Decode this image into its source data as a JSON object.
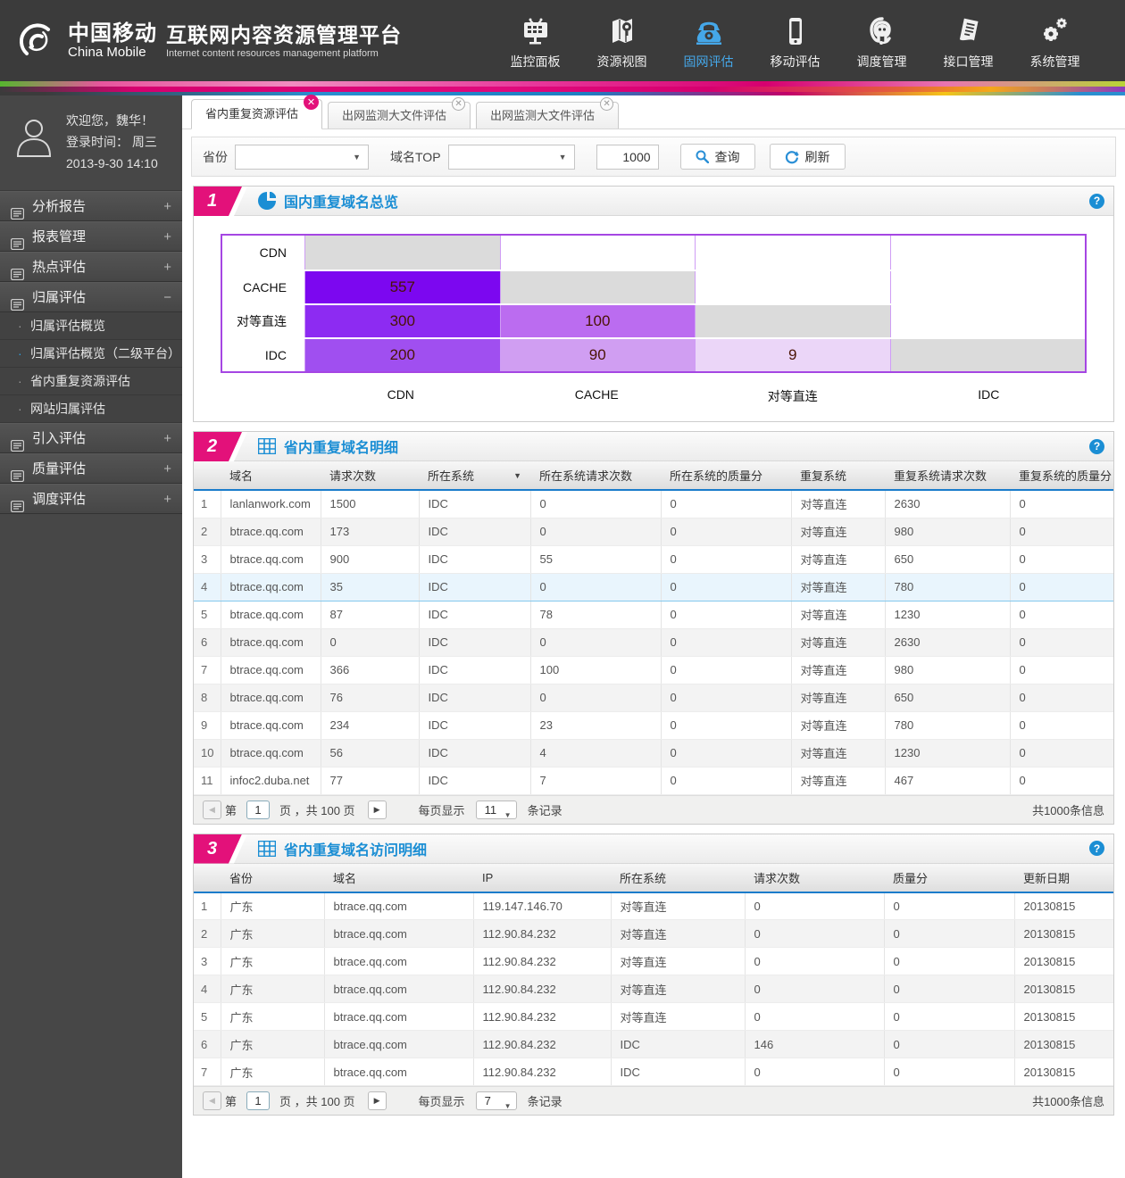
{
  "header": {
    "brand": {
      "name_cn": "中国移动",
      "name_en": "China Mobile",
      "title": "互联网内容资源管理平台",
      "subtitle": "Internet content resources management platform"
    },
    "nav": [
      {
        "label": "监控面板",
        "icon": "monitor-icon",
        "active": false
      },
      {
        "label": "资源视图",
        "icon": "map-icon",
        "active": false
      },
      {
        "label": "固网评估",
        "icon": "phone-icon",
        "active": true
      },
      {
        "label": "移动评估",
        "icon": "mobile-icon",
        "active": false
      },
      {
        "label": "调度管理",
        "icon": "headset-icon",
        "active": false
      },
      {
        "label": "接口管理",
        "icon": "document-icon",
        "active": false
      },
      {
        "label": "系统管理",
        "icon": "gears-icon",
        "active": false
      }
    ]
  },
  "sidebar": {
    "user": {
      "greeting": "欢迎您，魏华！",
      "login_line1": "登录时间：  周三",
      "login_line2": "2013-9-30   14:10"
    },
    "menu": [
      {
        "label": "分析报告",
        "state": "collapsed"
      },
      {
        "label": "报表管理",
        "state": "collapsed"
      },
      {
        "label": "热点评估",
        "state": "collapsed"
      },
      {
        "label": "归属评估",
        "state": "expanded",
        "children": [
          {
            "label": "归属评估概览",
            "active": false
          },
          {
            "label": "归属评估概览（二级平台）",
            "active": true
          },
          {
            "label": "省内重复资源评估",
            "active": false
          },
          {
            "label": "网站归属评估",
            "active": false
          }
        ]
      },
      {
        "label": "引入评估",
        "state": "collapsed"
      },
      {
        "label": "质量评估",
        "state": "collapsed"
      },
      {
        "label": "调度评估",
        "state": "collapsed"
      }
    ]
  },
  "tabs": [
    {
      "label": "省内重复资源评估",
      "active": true
    },
    {
      "label": "出网监测大文件评估",
      "active": false
    },
    {
      "label": "出网监测大文件评估",
      "active": false
    }
  ],
  "filterbar": {
    "province_label": "省份",
    "province_value": "",
    "domain_top_label": "域名TOP",
    "domain_top_value": "",
    "top_input": "1000",
    "search_label": "查询",
    "refresh_label": "刷新"
  },
  "section1": {
    "num": "1",
    "title": "国内重复域名总览"
  },
  "chart_data": {
    "type": "heatmap",
    "title": "国内重复域名总览",
    "row_labels": [
      "CDN",
      "CACHE",
      "对等直连",
      "IDC"
    ],
    "col_labels": [
      "CDN",
      "CACHE",
      "对等直连",
      "IDC"
    ],
    "cells": [
      [
        {
          "type": "diag"
        },
        {
          "type": "empty"
        },
        {
          "type": "empty"
        },
        {
          "type": "empty"
        }
      ],
      [
        {
          "type": "value",
          "value": "557",
          "bg": "#7c07f0"
        },
        {
          "type": "diag"
        },
        {
          "type": "empty"
        },
        {
          "type": "empty"
        }
      ],
      [
        {
          "type": "value",
          "value": "300",
          "bg": "#8d2bf2"
        },
        {
          "type": "value",
          "value": "100",
          "bg": "#bb6cf0"
        },
        {
          "type": "diag"
        },
        {
          "type": "empty"
        }
      ],
      [
        {
          "type": "value",
          "value": "200",
          "bg": "#a04ff0"
        },
        {
          "type": "value",
          "value": "90",
          "bg": "#d09ef2"
        },
        {
          "type": "value",
          "value": "9",
          "bg": "#ebd6f8"
        },
        {
          "type": "diag"
        }
      ]
    ],
    "diag_color": "#dbdbdb",
    "value_text_color": "#4a1404",
    "border_color": "#a546e3"
  },
  "section2": {
    "num": "2",
    "title": "省内重复域名明细",
    "headers": [
      "域名",
      "请求次数",
      "所在系统",
      "所在系统请求次数",
      "所在系统的质量分",
      "重复系统",
      "重复系统请求次数",
      "重复系统的质量分"
    ],
    "filter_header_index": 2,
    "selected_row_index": 3,
    "rows": [
      [
        "1",
        "lanlanwork.com",
        "1500",
        "IDC",
        "0",
        "0",
        "对等直连",
        "2630",
        "0"
      ],
      [
        "2",
        "btrace.qq.com",
        "173",
        "IDC",
        "0",
        "0",
        "对等直连",
        "980",
        "0"
      ],
      [
        "3",
        "btrace.qq.com",
        "900",
        "IDC",
        "55",
        "0",
        "对等直连",
        "650",
        "0"
      ],
      [
        "4",
        "btrace.qq.com",
        "35",
        "IDC",
        "0",
        "0",
        "对等直连",
        "780",
        "0"
      ],
      [
        "5",
        "btrace.qq.com",
        "87",
        "IDC",
        "78",
        "0",
        "对等直连",
        "1230",
        "0"
      ],
      [
        "6",
        "btrace.qq.com",
        "0",
        "IDC",
        "0",
        "0",
        "对等直连",
        "2630",
        "0"
      ],
      [
        "7",
        "btrace.qq.com",
        "366",
        "IDC",
        "100",
        "0",
        "对等直连",
        "980",
        "0"
      ],
      [
        "8",
        "btrace.qq.com",
        "76",
        "IDC",
        "0",
        "0",
        "对等直连",
        "650",
        "0"
      ],
      [
        "9",
        "btrace.qq.com",
        "234",
        "IDC",
        "23",
        "0",
        "对等直连",
        "780",
        "0"
      ],
      [
        "10",
        "btrace.qq.com",
        "56",
        "IDC",
        "4",
        "0",
        "对等直连",
        "1230",
        "0"
      ],
      [
        "11",
        "infoc2.duba.net",
        "77",
        "IDC",
        "7",
        "0",
        "对等直连",
        "467",
        "0"
      ]
    ],
    "pagination": {
      "page_prefix": "第",
      "page": "1",
      "page_suffix": "页 ，共 100 页",
      "per_prefix": "每页显示",
      "per_value": "11",
      "per_suffix": "条记录",
      "total": "共1000条信息"
    }
  },
  "section3": {
    "num": "3",
    "title": "省内重复域名访问明细",
    "headers": [
      "省份",
      "域名",
      "IP",
      "所在系统",
      "请求次数",
      "质量分",
      "更新日期"
    ],
    "rows": [
      [
        "1",
        "广东",
        "btrace.qq.com",
        "119.147.146.70",
        "对等直连",
        "0",
        "0",
        "20130815"
      ],
      [
        "2",
        "广东",
        "btrace.qq.com",
        "112.90.84.232",
        "对等直连",
        "0",
        "0",
        "20130815"
      ],
      [
        "3",
        "广东",
        "btrace.qq.com",
        "112.90.84.232",
        "对等直连",
        "0",
        "0",
        "20130815"
      ],
      [
        "4",
        "广东",
        "btrace.qq.com",
        "112.90.84.232",
        "对等直连",
        "0",
        "0",
        "20130815"
      ],
      [
        "5",
        "广东",
        "btrace.qq.com",
        "112.90.84.232",
        "对等直连",
        "0",
        "0",
        "20130815"
      ],
      [
        "6",
        "广东",
        "btrace.qq.com",
        "112.90.84.232",
        "IDC",
        "146",
        "0",
        "20130815"
      ],
      [
        "7",
        "广东",
        "btrace.qq.com",
        "112.90.84.232",
        "IDC",
        "0",
        "0",
        "20130815"
      ]
    ],
    "pagination": {
      "page_prefix": "第",
      "page": "1",
      "page_suffix": "页 ，共 100 页",
      "per_prefix": "每页显示",
      "per_value": "7",
      "per_suffix": "条记录",
      "total": "共1000条信息"
    }
  }
}
